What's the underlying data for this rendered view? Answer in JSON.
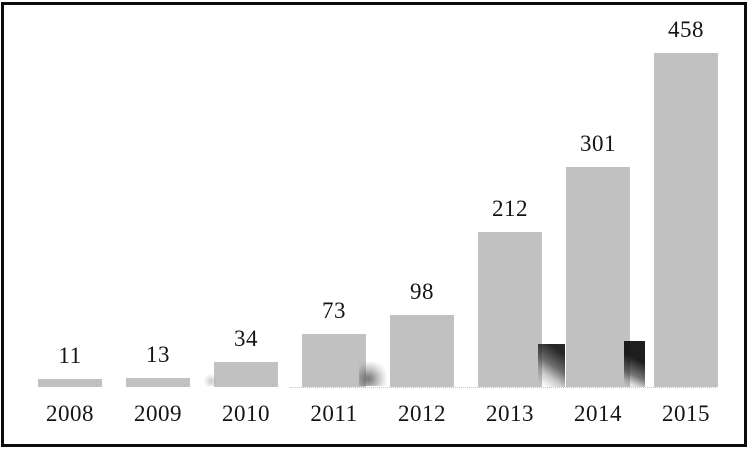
{
  "page": {
    "background": "#ffffff",
    "frame_color": "#0c0c0c"
  },
  "chart_data": {
    "type": "bar",
    "title": "",
    "xlabel": "",
    "ylabel": "",
    "categories": [
      "2008",
      "2009",
      "2010",
      "2011",
      "2012",
      "2013",
      "2014",
      "2015"
    ],
    "values": [
      11,
      13,
      34,
      73,
      98,
      212,
      301,
      458
    ],
    "data_labels": [
      "11",
      "13",
      "34",
      "73",
      "98",
      "212",
      "301",
      "458"
    ],
    "ylim": [
      0,
      470
    ],
    "grid": false,
    "legend": false,
    "axes_visible": false,
    "data_labels_position": "above-bars",
    "bar_color": "#c1c1c1",
    "text_color": "#141414"
  }
}
